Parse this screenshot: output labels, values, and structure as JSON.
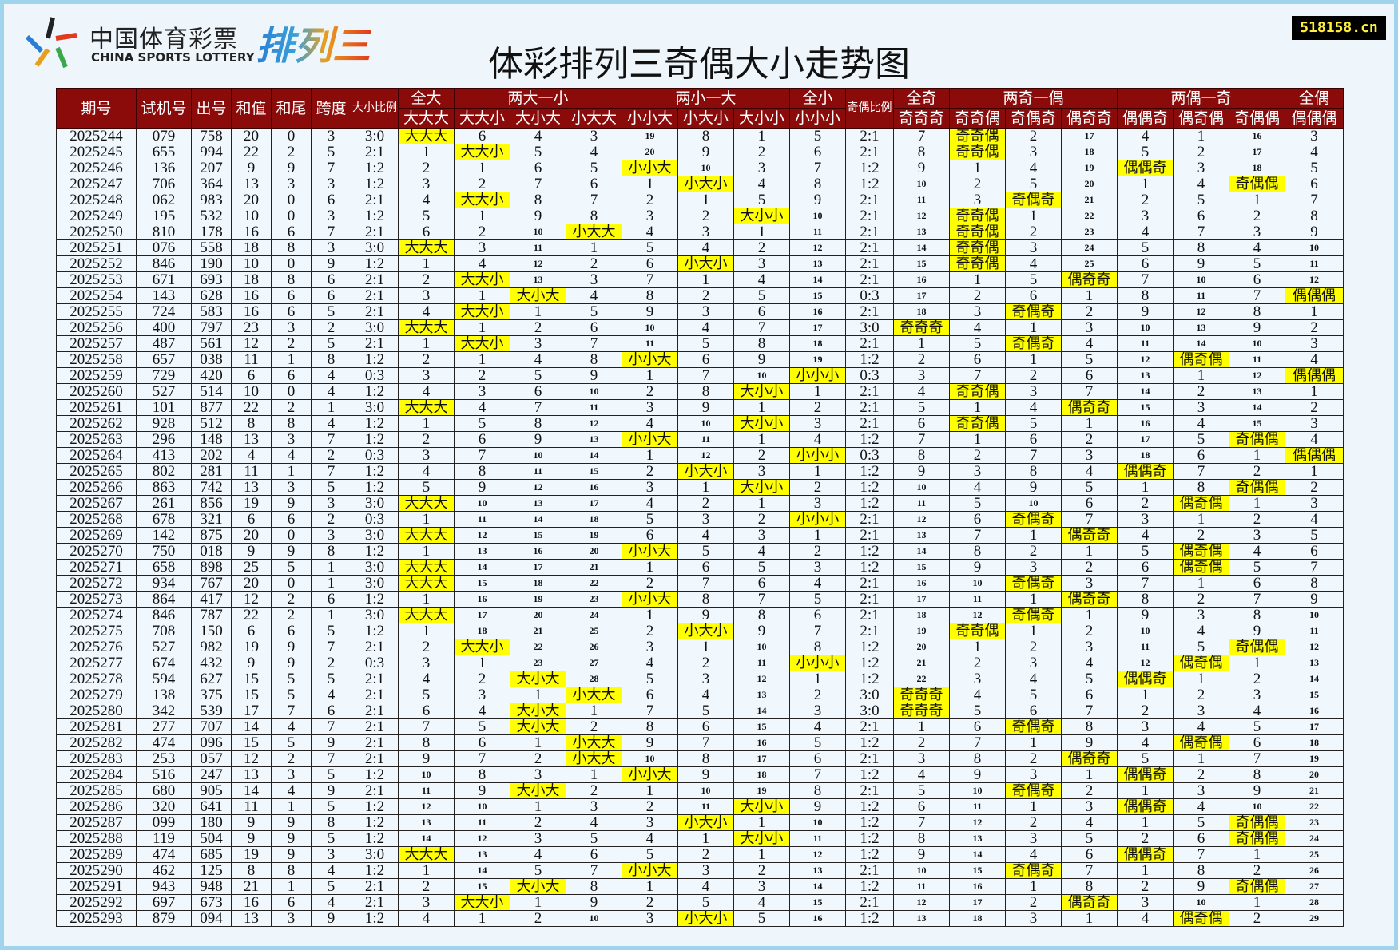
{
  "logo": {
    "cn": "中国体育彩票",
    "en": "CHINA SPORTS LOTTERY",
    "game": "排列三"
  },
  "title": "体彩排列三奇偶大小走势图",
  "badge": "518158.cn",
  "colors": {
    "header_bg": "#8b0a0a",
    "highlight": "#ffff00",
    "cell_bg": "#f0f7fd"
  },
  "chart_data": {
    "type": "table",
    "headers": {
      "issue": "期号",
      "trial": "试机号",
      "draw": "出号",
      "sum": "和值",
      "tail": "和尾",
      "span": "跨度",
      "bs_ratio": "大小比例",
      "oe_ratio": "奇偶比例",
      "groups": [
        "全大",
        "两大一小",
        "两小一大",
        "全小",
        "全奇",
        "两奇一偶",
        "两偶一奇",
        "全偶"
      ],
      "bs_patterns": [
        "大大大",
        "大大小",
        "大小大",
        "小大大",
        "小小大",
        "小大小",
        "大小小",
        "小小小"
      ],
      "oe_patterns": [
        "奇奇奇",
        "奇奇偶",
        "奇偶奇",
        "偶奇奇",
        "偶偶奇",
        "偶奇偶",
        "奇偶偶",
        "偶偶偶"
      ]
    },
    "rows": [
      [
        "2025244",
        "079",
        "758",
        "20",
        "0",
        "3",
        "3:0",
        "大大大",
        "6",
        "4",
        "3",
        "19",
        "8",
        "1",
        "5",
        "2:1",
        "7",
        "奇奇偶",
        "2",
        "17",
        "4",
        "1",
        "16",
        "3"
      ],
      [
        "2025245",
        "655",
        "994",
        "22",
        "2",
        "5",
        "2:1",
        "1",
        "大大小",
        "5",
        "4",
        "20",
        "9",
        "2",
        "6",
        "2:1",
        "8",
        "奇奇偶",
        "3",
        "18",
        "5",
        "2",
        "17",
        "4"
      ],
      [
        "2025246",
        "136",
        "207",
        "9",
        "9",
        "7",
        "1:2",
        "2",
        "1",
        "6",
        "5",
        "小小大",
        "10",
        "3",
        "7",
        "1:2",
        "9",
        "1",
        "4",
        "19",
        "偶偶奇",
        "3",
        "18",
        "5"
      ],
      [
        "2025247",
        "706",
        "364",
        "13",
        "3",
        "3",
        "1:2",
        "3",
        "2",
        "7",
        "6",
        "1",
        "小大小",
        "4",
        "8",
        "1:2",
        "10",
        "2",
        "5",
        "20",
        "1",
        "4",
        "奇偶偶",
        "6"
      ],
      [
        "2025248",
        "062",
        "983",
        "20",
        "0",
        "6",
        "2:1",
        "4",
        "大大小",
        "8",
        "7",
        "2",
        "1",
        "5",
        "9",
        "2:1",
        "11",
        "3",
        "奇偶奇",
        "21",
        "2",
        "5",
        "1",
        "7"
      ],
      [
        "2025249",
        "195",
        "532",
        "10",
        "0",
        "3",
        "1:2",
        "5",
        "1",
        "9",
        "8",
        "3",
        "2",
        "大小小",
        "10",
        "2:1",
        "12",
        "奇奇偶",
        "1",
        "22",
        "3",
        "6",
        "2",
        "8"
      ],
      [
        "2025250",
        "810",
        "178",
        "16",
        "6",
        "7",
        "2:1",
        "6",
        "2",
        "10",
        "小大大",
        "4",
        "3",
        "1",
        "11",
        "2:1",
        "13",
        "奇奇偶",
        "2",
        "23",
        "4",
        "7",
        "3",
        "9"
      ],
      [
        "2025251",
        "076",
        "558",
        "18",
        "8",
        "3",
        "3:0",
        "大大大",
        "3",
        "11",
        "1",
        "5",
        "4",
        "2",
        "12",
        "2:1",
        "14",
        "奇奇偶",
        "3",
        "24",
        "5",
        "8",
        "4",
        "10"
      ],
      [
        "2025252",
        "846",
        "190",
        "10",
        "0",
        "9",
        "1:2",
        "1",
        "4",
        "12",
        "2",
        "6",
        "小大小",
        "3",
        "13",
        "2:1",
        "15",
        "奇奇偶",
        "4",
        "25",
        "6",
        "9",
        "5",
        "11"
      ],
      [
        "2025253",
        "671",
        "693",
        "18",
        "8",
        "6",
        "2:1",
        "2",
        "大大小",
        "13",
        "3",
        "7",
        "1",
        "4",
        "14",
        "2:1",
        "16",
        "1",
        "5",
        "偶奇奇",
        "7",
        "10",
        "6",
        "12"
      ],
      [
        "2025254",
        "143",
        "628",
        "16",
        "6",
        "6",
        "2:1",
        "3",
        "1",
        "大小大",
        "4",
        "8",
        "2",
        "5",
        "15",
        "0:3",
        "17",
        "2",
        "6",
        "1",
        "8",
        "11",
        "7",
        "偶偶偶"
      ],
      [
        "2025255",
        "724",
        "583",
        "16",
        "6",
        "5",
        "2:1",
        "4",
        "大大小",
        "1",
        "5",
        "9",
        "3",
        "6",
        "16",
        "2:1",
        "18",
        "3",
        "奇偶奇",
        "2",
        "9",
        "12",
        "8",
        "1"
      ],
      [
        "2025256",
        "400",
        "797",
        "23",
        "3",
        "2",
        "3:0",
        "大大大",
        "1",
        "2",
        "6",
        "10",
        "4",
        "7",
        "17",
        "3:0",
        "奇奇奇",
        "4",
        "1",
        "3",
        "10",
        "13",
        "9",
        "2"
      ],
      [
        "2025257",
        "487",
        "561",
        "12",
        "2",
        "5",
        "2:1",
        "1",
        "大大小",
        "3",
        "7",
        "11",
        "5",
        "8",
        "18",
        "2:1",
        "1",
        "5",
        "奇偶奇",
        "4",
        "11",
        "14",
        "10",
        "3"
      ],
      [
        "2025258",
        "657",
        "038",
        "11",
        "1",
        "8",
        "1:2",
        "2",
        "1",
        "4",
        "8",
        "小小大",
        "6",
        "9",
        "19",
        "1:2",
        "2",
        "6",
        "1",
        "5",
        "12",
        "偶奇偶",
        "11",
        "4"
      ],
      [
        "2025259",
        "729",
        "420",
        "6",
        "6",
        "4",
        "0:3",
        "3",
        "2",
        "5",
        "9",
        "1",
        "7",
        "10",
        "小小小",
        "0:3",
        "3",
        "7",
        "2",
        "6",
        "13",
        "1",
        "12",
        "偶偶偶"
      ],
      [
        "2025260",
        "527",
        "514",
        "10",
        "0",
        "4",
        "1:2",
        "4",
        "3",
        "6",
        "10",
        "2",
        "8",
        "大小小",
        "1",
        "2:1",
        "4",
        "奇奇偶",
        "3",
        "7",
        "14",
        "2",
        "13",
        "1"
      ],
      [
        "2025261",
        "101",
        "877",
        "22",
        "2",
        "1",
        "3:0",
        "大大大",
        "4",
        "7",
        "11",
        "3",
        "9",
        "1",
        "2",
        "2:1",
        "5",
        "1",
        "4",
        "偶奇奇",
        "15",
        "3",
        "14",
        "2"
      ],
      [
        "2025262",
        "928",
        "512",
        "8",
        "8",
        "4",
        "1:2",
        "1",
        "5",
        "8",
        "12",
        "4",
        "10",
        "大小小",
        "3",
        "2:1",
        "6",
        "奇奇偶",
        "5",
        "1",
        "16",
        "4",
        "15",
        "3"
      ],
      [
        "2025263",
        "296",
        "148",
        "13",
        "3",
        "7",
        "1:2",
        "2",
        "6",
        "9",
        "13",
        "小小大",
        "11",
        "1",
        "4",
        "1:2",
        "7",
        "1",
        "6",
        "2",
        "17",
        "5",
        "奇偶偶",
        "4"
      ],
      [
        "2025264",
        "413",
        "202",
        "4",
        "4",
        "2",
        "0:3",
        "3",
        "7",
        "10",
        "14",
        "1",
        "12",
        "2",
        "小小小",
        "0:3",
        "8",
        "2",
        "7",
        "3",
        "18",
        "6",
        "1",
        "偶偶偶"
      ],
      [
        "2025265",
        "802",
        "281",
        "11",
        "1",
        "7",
        "1:2",
        "4",
        "8",
        "11",
        "15",
        "2",
        "小大小",
        "3",
        "1",
        "1:2",
        "9",
        "3",
        "8",
        "4",
        "偶偶奇",
        "7",
        "2",
        "1"
      ],
      [
        "2025266",
        "863",
        "742",
        "13",
        "3",
        "5",
        "1:2",
        "5",
        "9",
        "12",
        "16",
        "3",
        "1",
        "大小小",
        "2",
        "1:2",
        "10",
        "4",
        "9",
        "5",
        "1",
        "8",
        "奇偶偶",
        "2"
      ],
      [
        "2025267",
        "261",
        "856",
        "19",
        "9",
        "3",
        "3:0",
        "大大大",
        "10",
        "13",
        "17",
        "4",
        "2",
        "1",
        "3",
        "1:2",
        "11",
        "5",
        "10",
        "6",
        "2",
        "偶奇偶",
        "1",
        "3"
      ],
      [
        "2025268",
        "678",
        "321",
        "6",
        "6",
        "2",
        "0:3",
        "1",
        "11",
        "14",
        "18",
        "5",
        "3",
        "2",
        "小小小",
        "2:1",
        "12",
        "6",
        "奇偶奇",
        "7",
        "3",
        "1",
        "2",
        "4"
      ],
      [
        "2025269",
        "142",
        "875",
        "20",
        "0",
        "3",
        "3:0",
        "大大大",
        "12",
        "15",
        "19",
        "6",
        "4",
        "3",
        "1",
        "2:1",
        "13",
        "7",
        "1",
        "偶奇奇",
        "4",
        "2",
        "3",
        "5"
      ],
      [
        "2025270",
        "750",
        "018",
        "9",
        "9",
        "8",
        "1:2",
        "1",
        "13",
        "16",
        "20",
        "小小大",
        "5",
        "4",
        "2",
        "1:2",
        "14",
        "8",
        "2",
        "1",
        "5",
        "偶奇偶",
        "4",
        "6"
      ],
      [
        "2025271",
        "658",
        "898",
        "25",
        "5",
        "1",
        "3:0",
        "大大大",
        "14",
        "17",
        "21",
        "1",
        "6",
        "5",
        "3",
        "1:2",
        "15",
        "9",
        "3",
        "2",
        "6",
        "偶奇偶",
        "5",
        "7"
      ],
      [
        "2025272",
        "934",
        "767",
        "20",
        "0",
        "1",
        "3:0",
        "大大大",
        "15",
        "18",
        "22",
        "2",
        "7",
        "6",
        "4",
        "2:1",
        "16",
        "10",
        "奇偶奇",
        "3",
        "7",
        "1",
        "6",
        "8"
      ],
      [
        "2025273",
        "864",
        "417",
        "12",
        "2",
        "6",
        "1:2",
        "1",
        "16",
        "19",
        "23",
        "小小大",
        "8",
        "7",
        "5",
        "2:1",
        "17",
        "11",
        "1",
        "偶奇奇",
        "8",
        "2",
        "7",
        "9"
      ],
      [
        "2025274",
        "846",
        "787",
        "22",
        "2",
        "1",
        "3:0",
        "大大大",
        "17",
        "20",
        "24",
        "1",
        "9",
        "8",
        "6",
        "2:1",
        "18",
        "12",
        "奇偶奇",
        "1",
        "9",
        "3",
        "8",
        "10"
      ],
      [
        "2025275",
        "708",
        "150",
        "6",
        "6",
        "5",
        "1:2",
        "1",
        "18",
        "21",
        "25",
        "2",
        "小大小",
        "9",
        "7",
        "2:1",
        "19",
        "奇奇偶",
        "1",
        "2",
        "10",
        "4",
        "9",
        "11"
      ],
      [
        "2025276",
        "527",
        "982",
        "19",
        "9",
        "7",
        "2:1",
        "2",
        "大大小",
        "22",
        "26",
        "3",
        "1",
        "10",
        "8",
        "1:2",
        "20",
        "1",
        "2",
        "3",
        "11",
        "5",
        "奇偶偶",
        "12"
      ],
      [
        "2025277",
        "674",
        "432",
        "9",
        "9",
        "2",
        "0:3",
        "3",
        "1",
        "23",
        "27",
        "4",
        "2",
        "11",
        "小小小",
        "1:2",
        "21",
        "2",
        "3",
        "4",
        "12",
        "偶奇偶",
        "1",
        "13"
      ],
      [
        "2025278",
        "594",
        "627",
        "15",
        "5",
        "5",
        "2:1",
        "4",
        "2",
        "大小大",
        "28",
        "5",
        "3",
        "12",
        "1",
        "1:2",
        "22",
        "3",
        "4",
        "5",
        "偶偶奇",
        "1",
        "2",
        "14"
      ],
      [
        "2025279",
        "138",
        "375",
        "15",
        "5",
        "4",
        "2:1",
        "5",
        "3",
        "1",
        "小大大",
        "6",
        "4",
        "13",
        "2",
        "3:0",
        "奇奇奇",
        "4",
        "5",
        "6",
        "1",
        "2",
        "3",
        "15"
      ],
      [
        "2025280",
        "342",
        "539",
        "17",
        "7",
        "6",
        "2:1",
        "6",
        "4",
        "大小大",
        "1",
        "7",
        "5",
        "14",
        "3",
        "3:0",
        "奇奇奇",
        "5",
        "6",
        "7",
        "2",
        "3",
        "4",
        "16"
      ],
      [
        "2025281",
        "277",
        "707",
        "14",
        "4",
        "7",
        "2:1",
        "7",
        "5",
        "大小大",
        "2",
        "8",
        "6",
        "15",
        "4",
        "2:1",
        "1",
        "6",
        "奇偶奇",
        "8",
        "3",
        "4",
        "5",
        "17"
      ],
      [
        "2025282",
        "474",
        "096",
        "15",
        "5",
        "9",
        "2:1",
        "8",
        "6",
        "1",
        "小大大",
        "9",
        "7",
        "16",
        "5",
        "1:2",
        "2",
        "7",
        "1",
        "9",
        "4",
        "偶奇偶",
        "6",
        "18"
      ],
      [
        "2025283",
        "253",
        "057",
        "12",
        "2",
        "7",
        "2:1",
        "9",
        "7",
        "2",
        "小大大",
        "10",
        "8",
        "17",
        "6",
        "2:1",
        "3",
        "8",
        "2",
        "偶奇奇",
        "5",
        "1",
        "7",
        "19"
      ],
      [
        "2025284",
        "516",
        "247",
        "13",
        "3",
        "5",
        "1:2",
        "10",
        "8",
        "3",
        "1",
        "小小大",
        "9",
        "18",
        "7",
        "1:2",
        "4",
        "9",
        "3",
        "1",
        "偶偶奇",
        "2",
        "8",
        "20"
      ],
      [
        "2025285",
        "680",
        "905",
        "14",
        "4",
        "9",
        "2:1",
        "11",
        "9",
        "大小大",
        "2",
        "1",
        "10",
        "19",
        "8",
        "2:1",
        "5",
        "10",
        "奇偶奇",
        "2",
        "1",
        "3",
        "9",
        "21"
      ],
      [
        "2025286",
        "320",
        "641",
        "11",
        "1",
        "5",
        "1:2",
        "12",
        "10",
        "1",
        "3",
        "2",
        "11",
        "大小小",
        "9",
        "1:2",
        "6",
        "11",
        "1",
        "3",
        "偶偶奇",
        "4",
        "10",
        "22"
      ],
      [
        "2025287",
        "099",
        "180",
        "9",
        "9",
        "8",
        "1:2",
        "13",
        "11",
        "2",
        "4",
        "3",
        "小大小",
        "1",
        "10",
        "1:2",
        "7",
        "12",
        "2",
        "4",
        "1",
        "5",
        "奇偶偶",
        "23"
      ],
      [
        "2025288",
        "119",
        "504",
        "9",
        "9",
        "5",
        "1:2",
        "14",
        "12",
        "3",
        "5",
        "4",
        "1",
        "大小小",
        "11",
        "1:2",
        "8",
        "13",
        "3",
        "5",
        "2",
        "6",
        "奇偶偶",
        "24"
      ],
      [
        "2025289",
        "474",
        "685",
        "19",
        "9",
        "3",
        "3:0",
        "大大大",
        "13",
        "4",
        "6",
        "5",
        "2",
        "1",
        "12",
        "1:2",
        "9",
        "14",
        "4",
        "6",
        "偶偶奇",
        "7",
        "1",
        "25"
      ],
      [
        "2025290",
        "462",
        "125",
        "8",
        "8",
        "4",
        "1:2",
        "1",
        "14",
        "5",
        "7",
        "小小大",
        "3",
        "2",
        "13",
        "2:1",
        "10",
        "15",
        "奇偶奇",
        "7",
        "1",
        "8",
        "2",
        "26"
      ],
      [
        "2025291",
        "943",
        "948",
        "21",
        "1",
        "5",
        "2:1",
        "2",
        "15",
        "大小大",
        "8",
        "1",
        "4",
        "3",
        "14",
        "1:2",
        "11",
        "16",
        "1",
        "8",
        "2",
        "9",
        "奇偶偶",
        "27"
      ],
      [
        "2025292",
        "697",
        "673",
        "16",
        "6",
        "4",
        "2:1",
        "3",
        "大大小",
        "1",
        "9",
        "2",
        "5",
        "4",
        "15",
        "2:1",
        "12",
        "17",
        "2",
        "偶奇奇",
        "3",
        "10",
        "1",
        "28"
      ],
      [
        "2025293",
        "879",
        "094",
        "13",
        "3",
        "9",
        "1:2",
        "4",
        "1",
        "2",
        "10",
        "3",
        "小大小",
        "5",
        "16",
        "1:2",
        "13",
        "18",
        "3",
        "1",
        "4",
        "偶奇偶",
        "2",
        "29"
      ]
    ]
  }
}
